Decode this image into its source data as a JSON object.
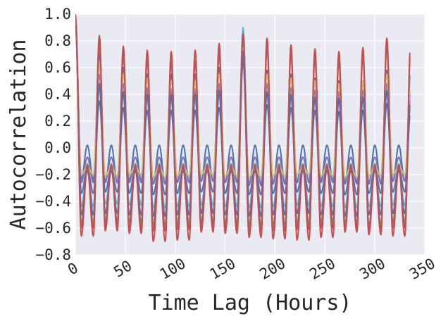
{
  "chart_data": {
    "type": "line",
    "title": "",
    "xlabel": "Time Lag (Hours)",
    "ylabel": "Autocorrelation",
    "xlim": [
      0,
      350
    ],
    "ylim": [
      -0.8,
      1.0
    ],
    "xticks": [
      0,
      50,
      100,
      150,
      200,
      250,
      300,
      350
    ],
    "xtick_labels": [
      "0",
      "50",
      "100",
      "150",
      "200",
      "250",
      "300",
      "350"
    ],
    "yticks": [
      -0.8,
      -0.6,
      -0.4,
      -0.2,
      0.0,
      0.2,
      0.4,
      0.6,
      0.8,
      1.0
    ],
    "ytick_labels": [
      "−0.8",
      "−0.6",
      "−0.4",
      "−0.2",
      "0.0",
      "0.2",
      "0.4",
      "0.6",
      "0.8",
      "1.0"
    ],
    "grid": true,
    "legend": "none",
    "background_color": "#eaeaf2",
    "period_hours": 24,
    "lag_max": 335,
    "series": [
      {
        "color": "#4c72b0",
        "peaks": [
          0.98,
          0.7,
          0.6,
          0.55,
          0.55,
          0.55,
          0.6,
          0.8,
          0.58,
          0.55,
          0.52,
          0.5,
          0.5,
          0.58,
          0.45
        ],
        "troughs": [
          -0.24,
          -0.26,
          -0.25,
          -0.27,
          -0.26,
          -0.25,
          -0.26,
          -0.28,
          -0.27,
          -0.26,
          -0.25,
          -0.26,
          -0.27,
          -0.25
        ],
        "secondary": 0.02
      },
      {
        "color": "#55a868",
        "peaks": [
          0.98,
          0.8,
          0.7,
          0.68,
          0.65,
          0.65,
          0.7,
          0.88,
          0.75,
          0.7,
          0.67,
          0.65,
          0.68,
          0.75,
          0.62
        ],
        "troughs": [
          -0.57,
          -0.55,
          -0.56,
          -0.58,
          -0.57,
          -0.56,
          -0.57,
          -0.58,
          -0.58,
          -0.57,
          -0.56,
          -0.57,
          -0.58,
          -0.56
        ],
        "secondary": -0.12
      },
      {
        "color": "#c44e52",
        "peaks": [
          1.0,
          0.84,
          0.76,
          0.73,
          0.72,
          0.73,
          0.78,
          0.88,
          0.82,
          0.77,
          0.74,
          0.72,
          0.75,
          0.82,
          0.81
        ],
        "troughs": [
          -0.66,
          -0.62,
          -0.64,
          -0.7,
          -0.69,
          -0.63,
          -0.64,
          -0.67,
          -0.68,
          -0.69,
          -0.67,
          -0.63,
          -0.65,
          -0.66
        ],
        "secondary": -0.14
      },
      {
        "color": "#8172b2",
        "peaks": [
          0.9,
          0.55,
          0.48,
          0.45,
          0.44,
          0.44,
          0.48,
          0.7,
          0.48,
          0.45,
          0.43,
          0.42,
          0.43,
          0.48,
          0.4
        ],
        "troughs": [
          -0.26,
          -0.25,
          -0.26,
          -0.27,
          -0.26,
          -0.25,
          -0.26,
          -0.27,
          -0.26,
          -0.25,
          -0.26,
          -0.27,
          -0.26,
          -0.25
        ],
        "secondary": -0.07
      },
      {
        "color": "#ccb974",
        "peaks": [
          0.95,
          0.62,
          0.55,
          0.52,
          0.5,
          0.5,
          0.55,
          0.75,
          0.55,
          0.52,
          0.5,
          0.48,
          0.5,
          0.55,
          0.48
        ],
        "troughs": [
          -0.2,
          -0.21,
          -0.2,
          -0.22,
          -0.21,
          -0.2,
          -0.21,
          -0.22,
          -0.21,
          -0.2,
          -0.21,
          -0.22,
          -0.21,
          -0.2
        ],
        "secondary": -0.14
      },
      {
        "color": "#64b5cd",
        "peaks": [
          0.92,
          0.45,
          0.4,
          0.38,
          0.37,
          0.37,
          0.4,
          0.9,
          0.4,
          0.38,
          0.36,
          0.35,
          0.37,
          0.42,
          0.35
        ],
        "troughs": [
          -0.44,
          -0.42,
          -0.43,
          -0.45,
          -0.44,
          -0.43,
          -0.44,
          -0.45,
          -0.44,
          -0.43,
          -0.44,
          -0.45,
          -0.44,
          -0.43
        ],
        "secondary": -0.16
      },
      {
        "color": "#4c72b0",
        "peaks": [
          0.93,
          0.35,
          0.3,
          0.28,
          0.28,
          0.28,
          0.3,
          0.72,
          0.32,
          0.3,
          0.28,
          0.27,
          0.28,
          0.33,
          0.28
        ],
        "troughs": [
          -0.34,
          -0.33,
          -0.34,
          -0.35,
          -0.34,
          -0.33,
          -0.34,
          -0.35,
          -0.34,
          -0.33,
          -0.34,
          -0.35,
          -0.34,
          -0.33
        ],
        "secondary": -0.15
      },
      {
        "color": "#4c72b0",
        "peaks": [
          0.95,
          0.48,
          0.42,
          0.4,
          0.4,
          0.4,
          0.43,
          0.65,
          0.42,
          0.4,
          0.38,
          0.37,
          0.38,
          0.43,
          0.38
        ],
        "troughs": [
          -0.5,
          -0.49,
          -0.5,
          -0.51,
          -0.5,
          -0.49,
          -0.5,
          -0.51,
          -0.5,
          -0.49,
          -0.5,
          -0.51,
          -0.5,
          -0.49
        ],
        "secondary": -0.17
      },
      {
        "color": "#c44e52",
        "peaks": [
          0.97,
          0.78,
          0.7,
          0.66,
          0.64,
          0.65,
          0.72,
          0.85,
          0.76,
          0.72,
          0.68,
          0.66,
          0.7,
          0.78,
          0.76
        ],
        "troughs": [
          -0.6,
          -0.58,
          -0.6,
          -0.62,
          -0.61,
          -0.59,
          -0.6,
          -0.62,
          -0.62,
          -0.61,
          -0.6,
          -0.59,
          -0.61,
          -0.6
        ],
        "secondary": -0.13
      }
    ]
  }
}
